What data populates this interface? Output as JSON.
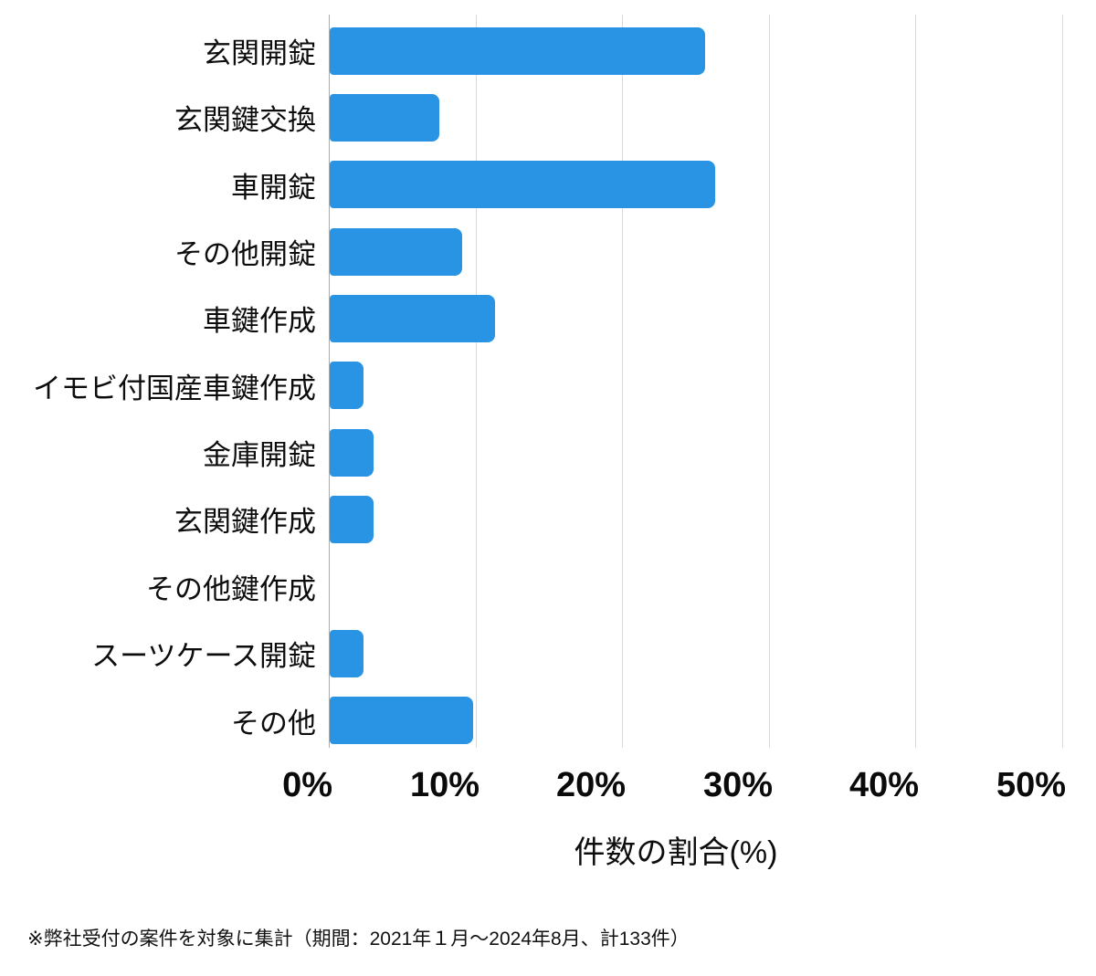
{
  "chart_data": {
    "type": "bar",
    "orientation": "horizontal",
    "categories": [
      "玄関開錠",
      "玄関鍵交換",
      "車開錠",
      "その他開錠",
      "車鍵作成",
      "イモビ付国産車鍵作成",
      "金庫開錠",
      "玄関鍵作成",
      "その他鍵作成",
      "スーツケース開錠",
      "その他"
    ],
    "values": [
      25.6,
      7.5,
      26.3,
      9.0,
      11.3,
      2.3,
      3.0,
      3.0,
      0,
      2.3,
      9.8
    ],
    "value_unit": "percent",
    "xlabel": "件数の割合(%)",
    "xlim": [
      0,
      50
    ],
    "xtick_labels": [
      "0%",
      "10%",
      "20%",
      "30%",
      "40%",
      "50%"
    ],
    "grid": true,
    "legend": false,
    "bar_color": "#2994E4",
    "footnote": "※弊社受付の案件を対象に集計（期間：2021年１月〜2024年8月、計133件）"
  }
}
